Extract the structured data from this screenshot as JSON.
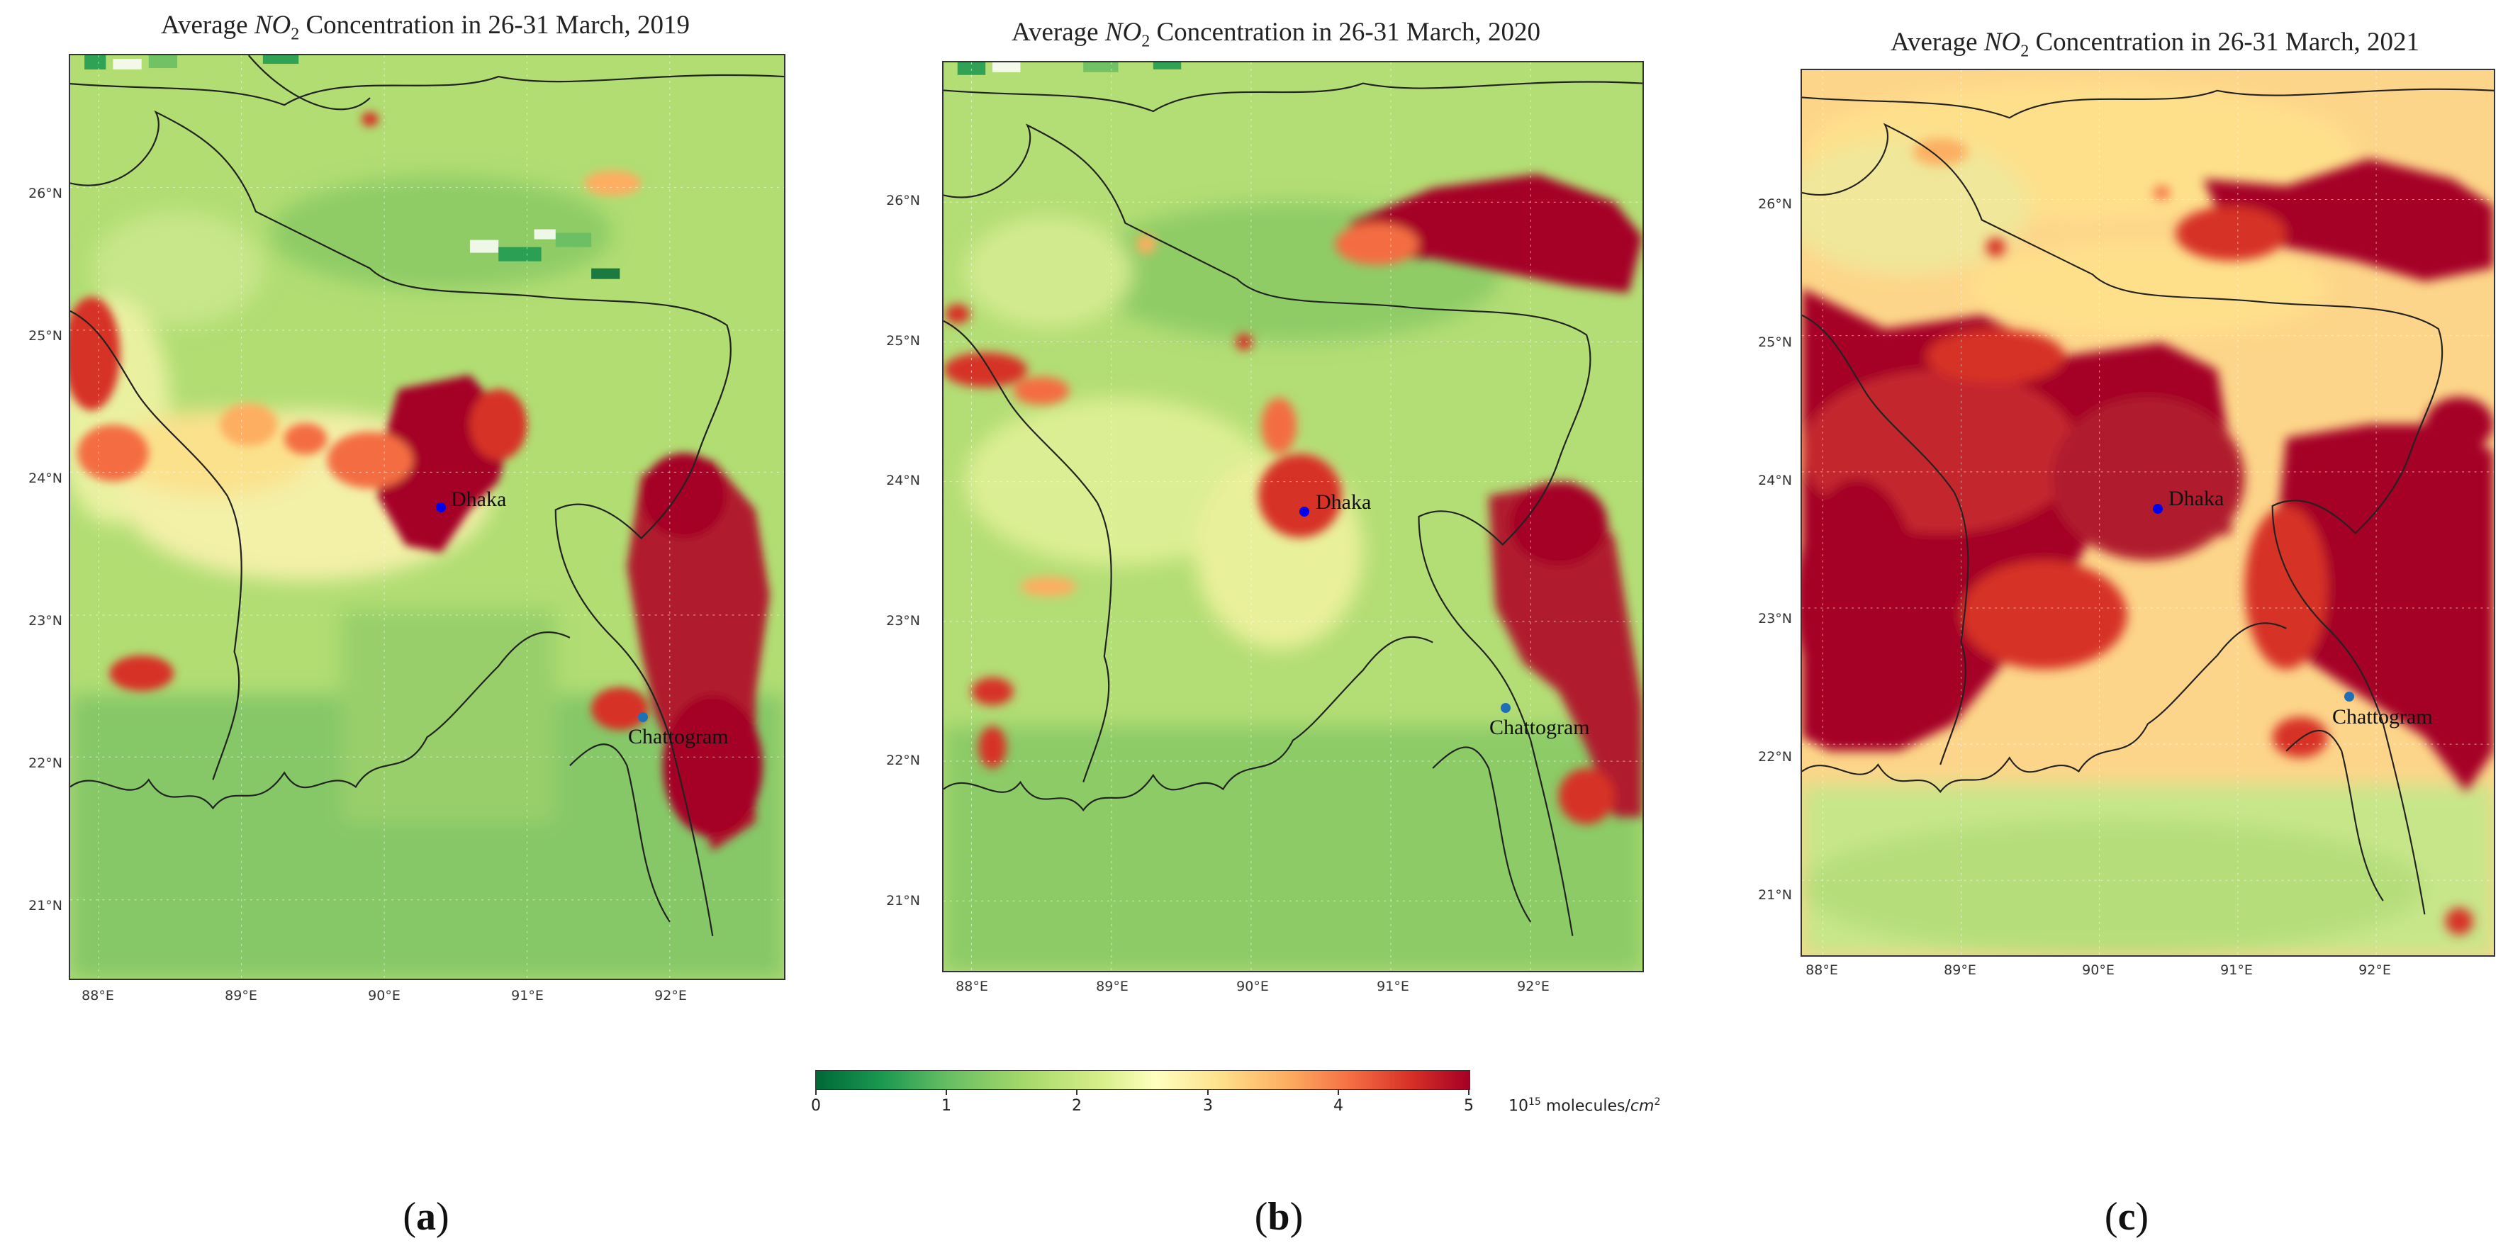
{
  "panels": [
    {
      "title_prefix": "Average ",
      "title_chem": "NO",
      "title_sub": "2",
      "title_suffix": " Concentration in 26-31 March, 2019",
      "label": "a",
      "lat_ticks": [
        "26°N",
        "25°N",
        "24°N",
        "23°N",
        "22°N",
        "21°N"
      ],
      "lon_ticks": [
        "88°E",
        "89°E",
        "90°E",
        "91°E",
        "92°E"
      ],
      "cities": [
        {
          "name": "Dhaka",
          "color": "#0000ee"
        },
        {
          "name": "Chattogram",
          "color": "#1f6fb5"
        }
      ]
    },
    {
      "title_prefix": "Average ",
      "title_chem": "NO",
      "title_sub": "2",
      "title_suffix": " Concentration in 26-31 March, 2020",
      "label": "b",
      "lat_ticks": [
        "26°N",
        "25°N",
        "24°N",
        "23°N",
        "22°N",
        "21°N"
      ],
      "lon_ticks": [
        "88°E",
        "89°E",
        "90°E",
        "91°E",
        "92°E"
      ],
      "cities": [
        {
          "name": "Dhaka",
          "color": "#0000ee"
        },
        {
          "name": "Chattogram",
          "color": "#1f6fb5"
        }
      ]
    },
    {
      "title_prefix": "Average ",
      "title_chem": "NO",
      "title_sub": "2",
      "title_suffix": " Concentration in 26-31 March, 2021",
      "label": "c",
      "lat_ticks": [
        "26°N",
        "25°N",
        "24°N",
        "23°N",
        "22°N",
        "21°N"
      ],
      "lon_ticks": [
        "88°E",
        "89°E",
        "90°E",
        "91°E",
        "92°E"
      ],
      "cities": [
        {
          "name": "Dhaka",
          "color": "#0000ee"
        },
        {
          "name": "Chattogram",
          "color": "#1f6fb5"
        }
      ]
    }
  ],
  "colorbar": {
    "ticks": [
      "0",
      "1",
      "2",
      "3",
      "4",
      "5"
    ],
    "unit_base": "10",
    "unit_exp": "15",
    "unit_text": " molecules/",
    "unit_italic": "cm",
    "unit_exp2": "2",
    "colors": [
      "#006837",
      "#1a9850",
      "#66bd63",
      "#a6d96a",
      "#d9ef8b",
      "#ffffbf",
      "#fee08b",
      "#fdae61",
      "#f46d43",
      "#d73027",
      "#a50026"
    ]
  }
}
